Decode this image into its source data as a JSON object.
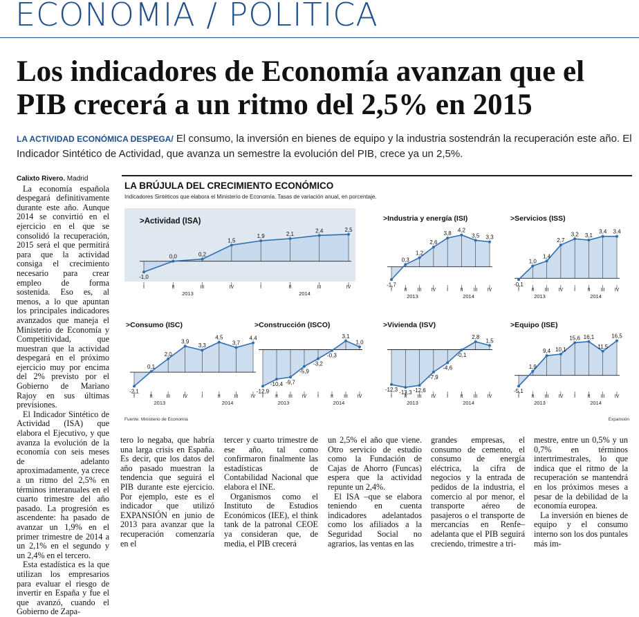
{
  "section": "ECONOMÍA / POLÍTICA",
  "headline": "Los indicadores de Economía avanzan que el PIB crecerá a un ritmo del 2,5% en 2015",
  "lead": {
    "kicker": "LA ACTIVIDAD ECONÓMICA DESPEGA/",
    "text": " El consumo, la inversión en bienes de equipo y la industria sostendrán la recuperación este año. El Indicador Sintético de Actividad, que avanza un semestre la evolución del PIB, crece ya un 2,5%."
  },
  "byline": {
    "author": "Calixto Rivero.",
    "place": " Madrid"
  },
  "columns": {
    "c1": [
      "La economía española despegará definitivamente durante este año. Aunque 2014 se convirtió en el ejercicio en el que se consolidó la recuperación, 2015 será el que permitirá para que la actividad consiga el crecimiento necesario para crear empleo de forma sostenida. Eso es, al menos, a lo que apuntan los principales indicadores avanzados que maneja el Ministerio de Economía y Competitividad, que muestran que la actividad despegará en el próximo ejercicio muy por encima del 2% previsto por el Gobierno de Mariano Rajoy en sus últimas previsiones.",
      "El Indicador Sintético de Actividad (ISA) que elabora el Ejecutivo, y que avanza la evolución de la economía con seis meses de adelanto aproximadamente, ya crece a un ritmo del 2,5% en términos interanuales en el cuarto trimestre del año pasado. La progresión es ascendente: ha pasado de avanzar un 1,9% en el primer trimestre de 2014 a un 2,1% en el segundo y un 2,4% en el tercero.",
      "Esta estadística es la que utilizan los empresarios para evaluar el riesgo de invertir en España y fue el que avanzó, cuando el Gobierno de Zapa-"
    ],
    "c2": [
      "tero lo negaba, que habría una larga crisis en España. Es decir, que los datos del año pasado muestran la tendencia que seguirá el PIB durante este ejercicio. Por ejemplo, este es el indicador que utilizó EXPANSIÓN en junio de 2013 para avanzar que la recuperación comenzaría en el"
    ],
    "c3": [
      "tercer y cuarto trimestre de ese año, tal como confirmaron finalmente las estadísticas de Contabilidad Nacional que elabora el INE.",
      "Organismos como el Instituto de Estudios Económicos (IEE), el think tank de la patronal CEOE ya consideran que, de media, el PIB crecerá"
    ],
    "c4": [
      "un 2,5% el año que viene. Otro servicio de estudio como la Fundación de Cajas de Ahorro (Funcas) espera que la actividad repunte un 2,4%.",
      "El ISA –que se elabora teniendo en cuenta indicadores adelantados como los afiliados a la Seguridad Social no agrarios, las ventas en las"
    ],
    "c5": [
      "grandes empresas, el consumo de cemento, el consumo de energía eléctrica, la cifra de negocios y la entrada de pedidos de la industria, el comercio al por menor, el transporte aéreo de pasajeros o el transporte de mercancías en Renfe– adelanta que el PIB seguirá creciendo, trimestre a tri-"
    ],
    "c6": [
      "mestre, entre un 0,5% y un 0,7% en términos intertrimestrales, lo que indica que el ritmo de la recuperación se mantendrá en los próximos meses a pesar de la debilidad de la economía europea.",
      "La inversión en bienes de equipo y el consumo interno son los dos puntales más im-"
    ]
  },
  "infographic": {
    "title": "LA BRÚJULA DEL CRECIMIENTO ECONÓMICO",
    "subtitle": "Indicadores Sintéticos que elabora el Ministerio de Economía. Tasas de variación anual, en porcentaje.",
    "source": "Fuente: Ministerio de Economía",
    "credit": "Expansión",
    "colors": {
      "line": "#2f6fb0",
      "fill": "#c3d7ec",
      "panel_bg": "#dfe7f0"
    }
  },
  "chart_data": [
    {
      "type": "area",
      "title": "Actividad (ISA)",
      "quarters": [
        "I",
        "II",
        "III",
        "IV",
        "I",
        "II",
        "III",
        "IV"
      ],
      "years": [
        "2013",
        "2014"
      ],
      "values": [
        -1.0,
        0.0,
        0.2,
        1.5,
        1.9,
        2.1,
        2.4,
        2.5
      ],
      "labels": [
        "-1,0",
        "0,0",
        "0,2",
        "1,5",
        "1,9",
        "2,1",
        "2,4",
        "2,5"
      ],
      "ylim": [
        -1.5,
        3
      ]
    },
    {
      "type": "area",
      "title": "Industria y energía (ISI)",
      "quarters": [
        "I",
        "II",
        "III",
        "IV",
        "I",
        "II",
        "III",
        "IV"
      ],
      "years": [
        "2013",
        "2014"
      ],
      "values": [
        -1.7,
        0.3,
        1.2,
        2.6,
        3.8,
        4.2,
        3.5,
        3.3
      ],
      "labels": [
        "-1,7",
        "0,3",
        "1,2",
        "2,6",
        "3,8",
        "4,2",
        "3,5",
        "3,3"
      ],
      "ylim": [
        -2.5,
        5
      ]
    },
    {
      "type": "area",
      "title": "Servicios (ISS)",
      "quarters": [
        "I",
        "II",
        "III",
        "IV",
        "I",
        "II",
        "III",
        "IV"
      ],
      "years": [
        "2013",
        "2014"
      ],
      "values": [
        -0.1,
        1.0,
        1.4,
        2.7,
        3.2,
        3.1,
        3.4,
        3.4
      ],
      "labels": [
        "-0,1",
        "1,0",
        "1,4",
        "2,7",
        "3,2",
        "3,1",
        "3,4",
        "3,4"
      ],
      "ylim": [
        -0.6,
        4
      ]
    },
    {
      "type": "area",
      "title": "Consumo (ISC)",
      "quarters": [
        "I",
        "II",
        "III",
        "IV",
        "I",
        "II",
        "III",
        "IV"
      ],
      "years": [
        "2013",
        "2014"
      ],
      "values": [
        -2.1,
        0.1,
        2.0,
        3.9,
        3.3,
        4.5,
        3.7,
        4.4
      ],
      "labels": [
        "-2,1",
        "0,1",
        "2,0",
        "3,9",
        "3,3",
        "4,5",
        "3,7",
        "4,4"
      ],
      "ylim": [
        -3,
        5.5
      ]
    },
    {
      "type": "area",
      "title": "Construcción (ISCO)",
      "quarters": [
        "I",
        "II",
        "III",
        "IV",
        "I",
        "II",
        "III",
        "IV"
      ],
      "years": [
        "2013",
        "2014"
      ],
      "values": [
        -12.9,
        -10.4,
        -9.7,
        -5.9,
        -3.2,
        -0.3,
        3.1,
        1.0
      ],
      "labels": [
        "-12,9",
        "-10,4",
        "-9,7",
        "-5,9",
        "-3,2",
        "-0,3",
        "3,1",
        "1,0"
      ],
      "ylim": [
        -15,
        5
      ]
    },
    {
      "type": "area",
      "title": "Vivienda (ISV)",
      "quarters": [
        "I",
        "II",
        "III",
        "IV",
        "I",
        "II",
        "III",
        "IV"
      ],
      "years": [
        "2013",
        "2014"
      ],
      "values": [
        -12.3,
        -13.3,
        -12.6,
        -7.9,
        -4.6,
        -0.1,
        2.8,
        1.5
      ],
      "labels": [
        "-12,3",
        "-13,3",
        "-12,6",
        "-7,9",
        "-4,6",
        "-0,1",
        "2,8",
        "1,5"
      ],
      "ylim": [
        -15,
        5
      ]
    },
    {
      "type": "area",
      "title": "Equipo (ISE)",
      "quarters": [
        "I",
        "II",
        "III",
        "IV",
        "I",
        "II",
        "III",
        "IV"
      ],
      "years": [
        "2013",
        "2014"
      ],
      "values": [
        -5.1,
        1.9,
        9.4,
        10.1,
        15.6,
        16.1,
        11.5,
        16.5
      ],
      "labels": [
        "-5,1",
        "1,9",
        "9,4",
        "10,1",
        "15,6",
        "16,1",
        "11,5",
        "16,5"
      ],
      "ylim": [
        -8,
        19
      ]
    }
  ]
}
